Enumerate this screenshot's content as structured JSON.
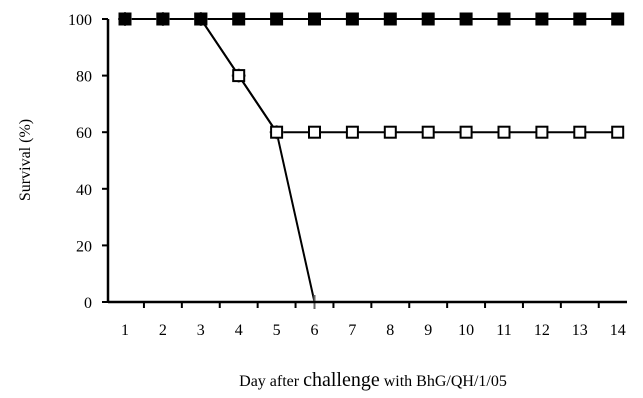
{
  "chart_data": {
    "type": "line",
    "xlabel_parts": [
      "Day after ",
      "challenge",
      " with BhG/QH/1/05"
    ],
    "ylabel": "Survival (%)",
    "x": [
      1,
      2,
      3,
      4,
      5,
      6,
      7,
      8,
      9,
      10,
      11,
      12,
      13,
      14
    ],
    "xlim": [
      0.5,
      14.5
    ],
    "ylim": [
      0,
      100
    ],
    "yticks": [
      0,
      20,
      40,
      60,
      80,
      100
    ],
    "grid": false,
    "legend": "none",
    "series": [
      {
        "marker": "filled-square",
        "color": "#000000",
        "x": [
          1,
          2,
          3,
          4,
          5,
          6,
          7,
          8,
          9,
          10,
          11,
          12,
          13,
          14
        ],
        "y": [
          100,
          100,
          100,
          100,
          100,
          100,
          100,
          100,
          100,
          100,
          100,
          100,
          100,
          100
        ]
      },
      {
        "marker": "open-square",
        "color": "#000000",
        "x": [
          1,
          2,
          3,
          4,
          5,
          6,
          7,
          8,
          9,
          10,
          11,
          12,
          13,
          14
        ],
        "y": [
          100,
          100,
          100,
          80,
          60,
          60,
          60,
          60,
          60,
          60,
          60,
          60,
          60,
          60
        ]
      },
      {
        "marker": "plus",
        "color": "#000000",
        "x": [
          1,
          2,
          3,
          4,
          5,
          6
        ],
        "y": [
          100,
          100,
          100,
          80,
          60,
          0
        ]
      }
    ]
  }
}
